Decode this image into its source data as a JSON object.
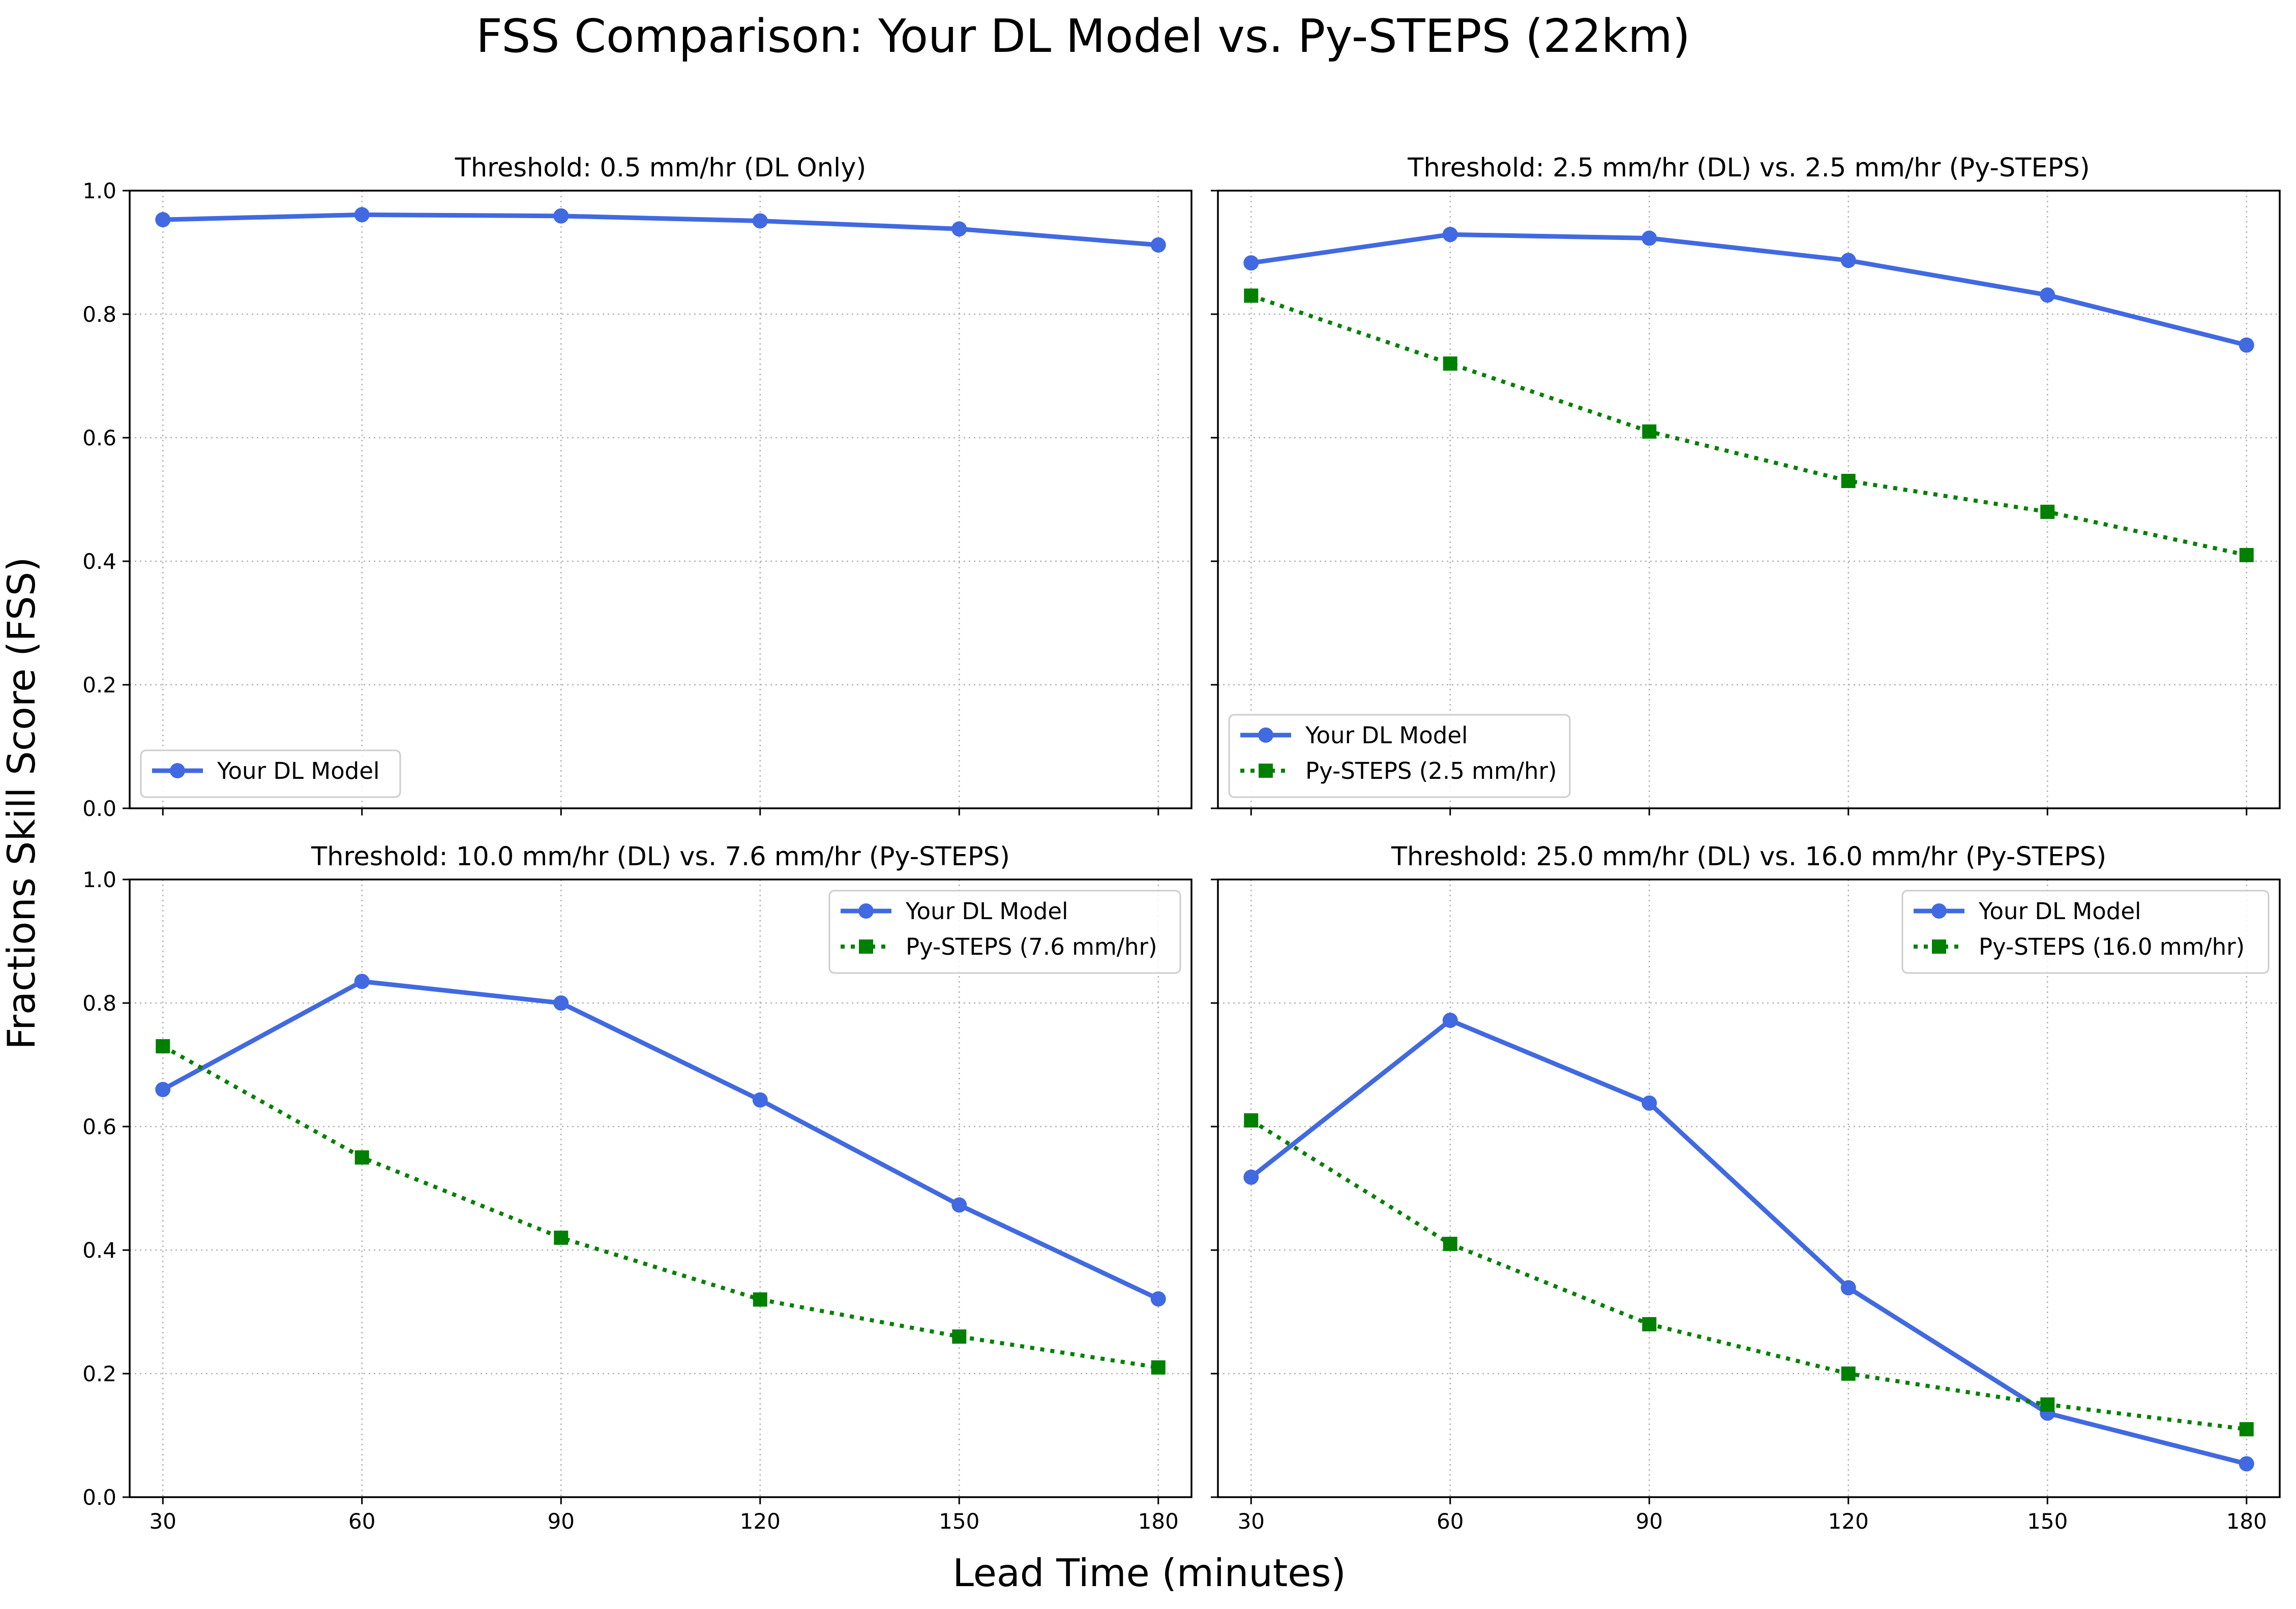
{
  "figure": {
    "title": "FSS Comparison: Your DL Model vs. Py-STEPS (22km)",
    "xlabel": "Lead Time (minutes)",
    "ylabel": "Fractions Skill Score (FSS)"
  },
  "colors": {
    "dl": "#4169e1",
    "pysteps": "#008000"
  },
  "chart_data": [
    {
      "type": "line",
      "title": "Threshold: 0.5 mm/hr (DL Only)",
      "x": [
        30,
        60,
        90,
        120,
        150,
        180
      ],
      "xlim": [
        25,
        185
      ],
      "ylim": [
        0,
        1.0
      ],
      "xticks": [
        "30",
        "60",
        "90",
        "120",
        "150",
        "180"
      ],
      "yticks": [
        "0.0",
        "0.2",
        "0.4",
        "0.6",
        "0.8",
        "1.0"
      ],
      "grid": true,
      "legend_position": "lower-left",
      "series": [
        {
          "name": "Your DL Model",
          "color": "#4169e1",
          "marker": "circle",
          "linestyle": "solid",
          "values": [
            0.953,
            0.961,
            0.959,
            0.951,
            0.938,
            0.912
          ]
        }
      ]
    },
    {
      "type": "line",
      "title": "Threshold: 2.5 mm/hr (DL) vs. 2.5 mm/hr (Py-STEPS)",
      "x": [
        30,
        60,
        90,
        120,
        150,
        180
      ],
      "xlim": [
        25,
        185
      ],
      "ylim": [
        0,
        1.0
      ],
      "xticks": [
        "30",
        "60",
        "90",
        "120",
        "150",
        "180"
      ],
      "yticks": [
        "0.0",
        "0.2",
        "0.4",
        "0.6",
        "0.8",
        "1.0"
      ],
      "grid": true,
      "legend_position": "lower-left",
      "series": [
        {
          "name": "Your DL Model",
          "color": "#4169e1",
          "marker": "circle",
          "linestyle": "solid",
          "values": [
            0.883,
            0.929,
            0.923,
            0.887,
            0.831,
            0.75
          ]
        },
        {
          "name": "Py-STEPS (2.5 mm/hr)",
          "color": "#008000",
          "marker": "square",
          "linestyle": "dotted",
          "values": [
            0.83,
            0.72,
            0.61,
            0.53,
            0.48,
            0.41
          ]
        }
      ]
    },
    {
      "type": "line",
      "title": "Threshold: 10.0 mm/hr (DL) vs. 7.6 mm/hr (Py-STEPS)",
      "x": [
        30,
        60,
        90,
        120,
        150,
        180
      ],
      "xlim": [
        25,
        185
      ],
      "ylim": [
        0,
        1.0
      ],
      "xticks": [
        "30",
        "60",
        "90",
        "120",
        "150",
        "180"
      ],
      "yticks": [
        "0.0",
        "0.2",
        "0.4",
        "0.6",
        "0.8",
        "1.0"
      ],
      "grid": true,
      "legend_position": "upper-right",
      "series": [
        {
          "name": "Your DL Model",
          "color": "#4169e1",
          "marker": "circle",
          "linestyle": "solid",
          "values": [
            0.66,
            0.835,
            0.8,
            0.643,
            0.473,
            0.321
          ]
        },
        {
          "name": "Py-STEPS (7.6 mm/hr)",
          "color": "#008000",
          "marker": "square",
          "linestyle": "dotted",
          "values": [
            0.73,
            0.55,
            0.42,
            0.32,
            0.26,
            0.21
          ]
        }
      ]
    },
    {
      "type": "line",
      "title": "Threshold: 25.0 mm/hr (DL) vs. 16.0 mm/hr (Py-STEPS)",
      "x": [
        30,
        60,
        90,
        120,
        150,
        180
      ],
      "xlim": [
        25,
        185
      ],
      "ylim": [
        0,
        1.0
      ],
      "xticks": [
        "30",
        "60",
        "90",
        "120",
        "150",
        "180"
      ],
      "yticks": [
        "0.0",
        "0.2",
        "0.4",
        "0.6",
        "0.8",
        "1.0"
      ],
      "grid": true,
      "legend_position": "upper-right",
      "series": [
        {
          "name": "Your DL Model",
          "color": "#4169e1",
          "marker": "circle",
          "linestyle": "solid",
          "values": [
            0.518,
            0.772,
            0.638,
            0.339,
            0.136,
            0.054
          ]
        },
        {
          "name": "Py-STEPS (16.0 mm/hr)",
          "color": "#008000",
          "marker": "square",
          "linestyle": "dotted",
          "values": [
            0.61,
            0.41,
            0.28,
            0.2,
            0.15,
            0.11
          ]
        }
      ]
    }
  ]
}
